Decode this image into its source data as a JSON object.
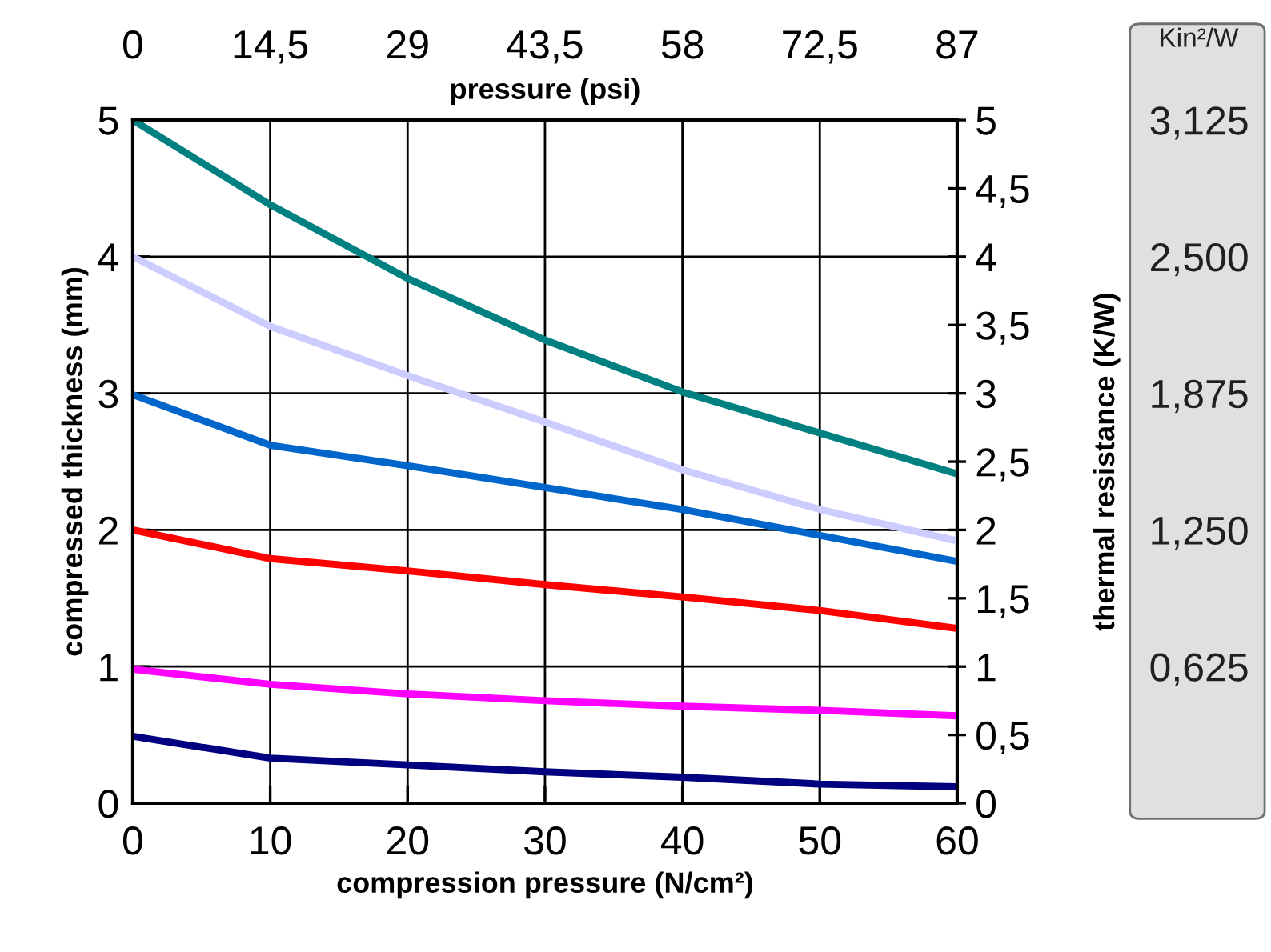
{
  "chart_data": {
    "type": "line",
    "xlabel": "compression pressure (N/cm²)",
    "ylabel": "compressed thickness (mm)",
    "y2label": "thermal resistance (K/W)",
    "x2label": "pressure (psi)",
    "y3label": "Kin²/W",
    "x": [
      0,
      10,
      20,
      30,
      40,
      50,
      60
    ],
    "series": [
      {
        "color": "#008080",
        "values": [
          5.0,
          4.38,
          3.84,
          3.39,
          3.01,
          2.71,
          2.41
        ]
      },
      {
        "color": "#ccccff",
        "values": [
          4.0,
          3.49,
          3.13,
          2.79,
          2.44,
          2.15,
          1.92
        ]
      },
      {
        "color": "#0066cc",
        "values": [
          2.99,
          2.62,
          2.47,
          2.31,
          2.15,
          1.96,
          1.77
        ]
      },
      {
        "color": "#ff0000",
        "values": [
          2.0,
          1.79,
          1.7,
          1.6,
          1.51,
          1.41,
          1.28
        ]
      },
      {
        "color": "#ff00ff",
        "values": [
          0.98,
          0.87,
          0.8,
          0.75,
          0.71,
          0.68,
          0.64
        ]
      },
      {
        "color": "#000080",
        "values": [
          0.49,
          0.33,
          0.28,
          0.23,
          0.19,
          0.14,
          0.12
        ]
      }
    ],
    "xlim": [
      0,
      60
    ],
    "xticks": [
      0,
      10,
      20,
      30,
      40,
      50,
      60
    ],
    "ylim": [
      0,
      5
    ],
    "yticks": [
      0,
      1,
      2,
      3,
      4,
      5
    ],
    "x2lim": [
      0,
      87
    ],
    "x2ticks": [
      0,
      {
        "value": 14.5,
        "label": "14,5"
      },
      29,
      {
        "value": 43.5,
        "label": "43,5"
      },
      58,
      {
        "value": 72.5,
        "label": "72,5"
      },
      87
    ],
    "y2lim": [
      0,
      5
    ],
    "y2ticks": [
      0,
      {
        "value": 0.5,
        "label": "0,5"
      },
      1,
      {
        "value": 1.5,
        "label": "1,5"
      },
      2,
      {
        "value": 2.5,
        "label": "2,5"
      },
      3,
      {
        "value": 3.5,
        "label": "3,5"
      },
      4,
      {
        "value": 4.5,
        "label": "4,5"
      },
      5
    ],
    "y3lim": [
      0,
      3.125
    ],
    "y3ticks": [
      {
        "value": 0.625,
        "label": "0,625"
      },
      {
        "value": 1.25,
        "label": "1,250"
      },
      {
        "value": 1.875,
        "label": "1,875"
      },
      {
        "value": 2.5,
        "label": "2,500"
      },
      {
        "value": 3.125,
        "label": "3,125"
      }
    ],
    "grid": true,
    "legend": false,
    "marker": "none",
    "line_style": "solid"
  }
}
